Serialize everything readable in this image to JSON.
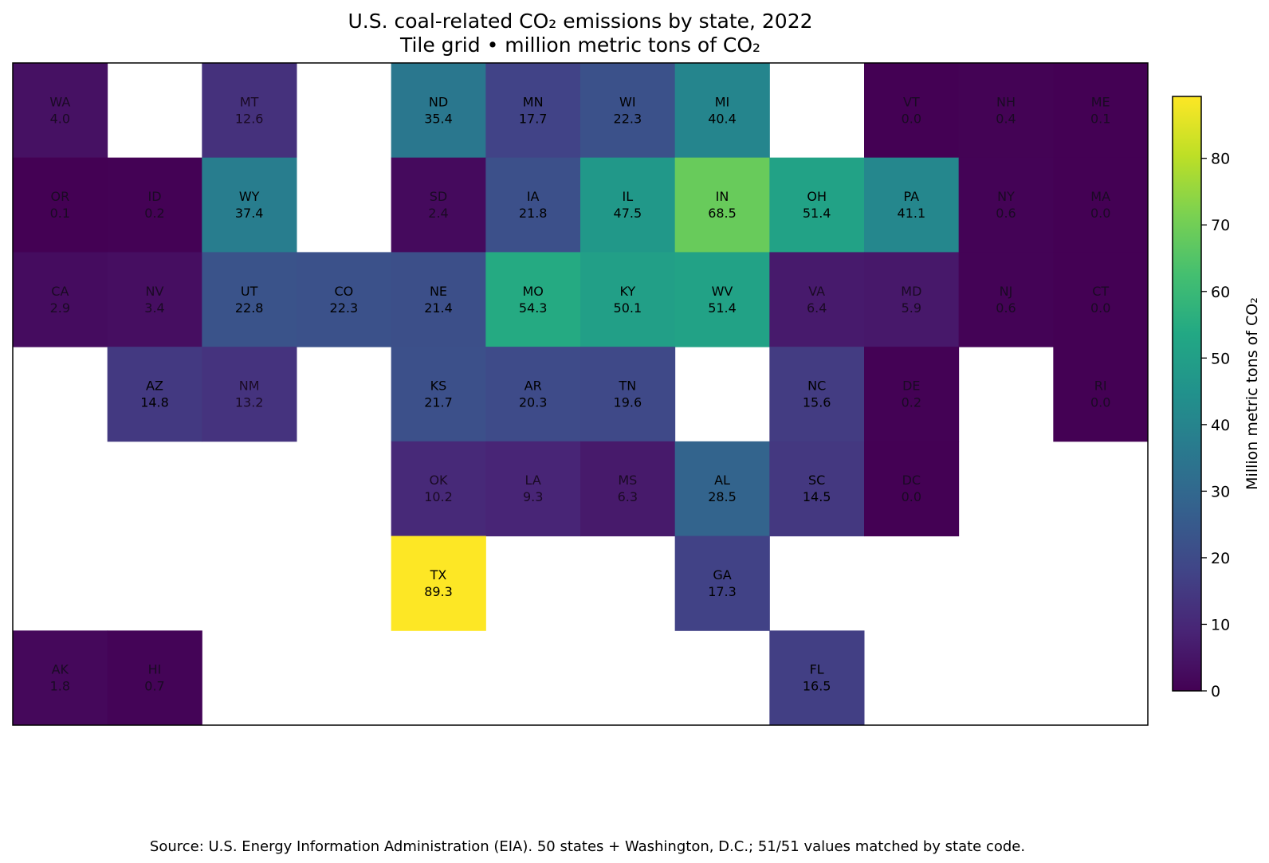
{
  "chart_data": {
    "type": "heatmap",
    "title": "U.S. coal-related CO₂ emissions by state, 2022",
    "subtitle": "Tile grid • million metric tons of CO₂",
    "colorbar_label": "Million metric tons of CO₂",
    "colormap": "viridis",
    "value_range": [
      0,
      89.3
    ],
    "colorbar_ticks": [
      0,
      10,
      20,
      30,
      40,
      50,
      60,
      70,
      80
    ],
    "grid": {
      "columns": 12,
      "rows": 7
    },
    "tiles": [
      {
        "state": "WA",
        "value": 4.0,
        "col": 0,
        "row": 0
      },
      {
        "state": "MT",
        "value": 12.6,
        "col": 2,
        "row": 0
      },
      {
        "state": "ND",
        "value": 35.4,
        "col": 4,
        "row": 0
      },
      {
        "state": "MN",
        "value": 17.7,
        "col": 5,
        "row": 0
      },
      {
        "state": "WI",
        "value": 22.3,
        "col": 6,
        "row": 0
      },
      {
        "state": "MI",
        "value": 40.4,
        "col": 7,
        "row": 0
      },
      {
        "state": "VT",
        "value": 0.0,
        "col": 9,
        "row": 0
      },
      {
        "state": "NH",
        "value": 0.4,
        "col": 10,
        "row": 0
      },
      {
        "state": "ME",
        "value": 0.1,
        "col": 11,
        "row": 0
      },
      {
        "state": "OR",
        "value": 0.1,
        "col": 0,
        "row": 1
      },
      {
        "state": "ID",
        "value": 0.2,
        "col": 1,
        "row": 1
      },
      {
        "state": "WY",
        "value": 37.4,
        "col": 2,
        "row": 1
      },
      {
        "state": "SD",
        "value": 2.4,
        "col": 4,
        "row": 1
      },
      {
        "state": "IA",
        "value": 21.8,
        "col": 5,
        "row": 1
      },
      {
        "state": "IL",
        "value": 47.5,
        "col": 6,
        "row": 1
      },
      {
        "state": "IN",
        "value": 68.5,
        "col": 7,
        "row": 1
      },
      {
        "state": "OH",
        "value": 51.4,
        "col": 8,
        "row": 1
      },
      {
        "state": "PA",
        "value": 41.1,
        "col": 9,
        "row": 1
      },
      {
        "state": "NY",
        "value": 0.6,
        "col": 10,
        "row": 1
      },
      {
        "state": "MA",
        "value": 0.0,
        "col": 11,
        "row": 1
      },
      {
        "state": "CA",
        "value": 2.9,
        "col": 0,
        "row": 2
      },
      {
        "state": "NV",
        "value": 3.4,
        "col": 1,
        "row": 2
      },
      {
        "state": "UT",
        "value": 22.8,
        "col": 2,
        "row": 2
      },
      {
        "state": "CO",
        "value": 22.3,
        "col": 3,
        "row": 2
      },
      {
        "state": "NE",
        "value": 21.4,
        "col": 4,
        "row": 2
      },
      {
        "state": "MO",
        "value": 54.3,
        "col": 5,
        "row": 2
      },
      {
        "state": "KY",
        "value": 50.1,
        "col": 6,
        "row": 2
      },
      {
        "state": "WV",
        "value": 51.4,
        "col": 7,
        "row": 2
      },
      {
        "state": "VA",
        "value": 6.4,
        "col": 8,
        "row": 2
      },
      {
        "state": "MD",
        "value": 5.9,
        "col": 9,
        "row": 2
      },
      {
        "state": "NJ",
        "value": 0.6,
        "col": 10,
        "row": 2
      },
      {
        "state": "CT",
        "value": 0.0,
        "col": 11,
        "row": 2
      },
      {
        "state": "AZ",
        "value": 14.8,
        "col": 1,
        "row": 3
      },
      {
        "state": "NM",
        "value": 13.2,
        "col": 2,
        "row": 3
      },
      {
        "state": "KS",
        "value": 21.7,
        "col": 4,
        "row": 3
      },
      {
        "state": "AR",
        "value": 20.3,
        "col": 5,
        "row": 3
      },
      {
        "state": "TN",
        "value": 19.6,
        "col": 6,
        "row": 3
      },
      {
        "state": "NC",
        "value": 15.6,
        "col": 8,
        "row": 3
      },
      {
        "state": "DE",
        "value": 0.2,
        "col": 9,
        "row": 3
      },
      {
        "state": "RI",
        "value": 0.0,
        "col": 11,
        "row": 3
      },
      {
        "state": "OK",
        "value": 10.2,
        "col": 4,
        "row": 4
      },
      {
        "state": "LA",
        "value": 9.3,
        "col": 5,
        "row": 4
      },
      {
        "state": "MS",
        "value": 6.3,
        "col": 6,
        "row": 4
      },
      {
        "state": "AL",
        "value": 28.5,
        "col": 7,
        "row": 4
      },
      {
        "state": "SC",
        "value": 14.5,
        "col": 8,
        "row": 4
      },
      {
        "state": "DC",
        "value": 0.0,
        "col": 9,
        "row": 4
      },
      {
        "state": "TX",
        "value": 89.3,
        "col": 4,
        "row": 5
      },
      {
        "state": "GA",
        "value": 17.3,
        "col": 7,
        "row": 5
      },
      {
        "state": "AK",
        "value": 1.8,
        "col": 0,
        "row": 6
      },
      {
        "state": "HI",
        "value": 0.7,
        "col": 1,
        "row": 6
      },
      {
        "state": "FL",
        "value": 16.5,
        "col": 8,
        "row": 6
      }
    ]
  },
  "source_note": "Source: U.S. Energy Information Administration (EIA). 50 states + Washington, D.C.; 51/51 values matched by state code."
}
